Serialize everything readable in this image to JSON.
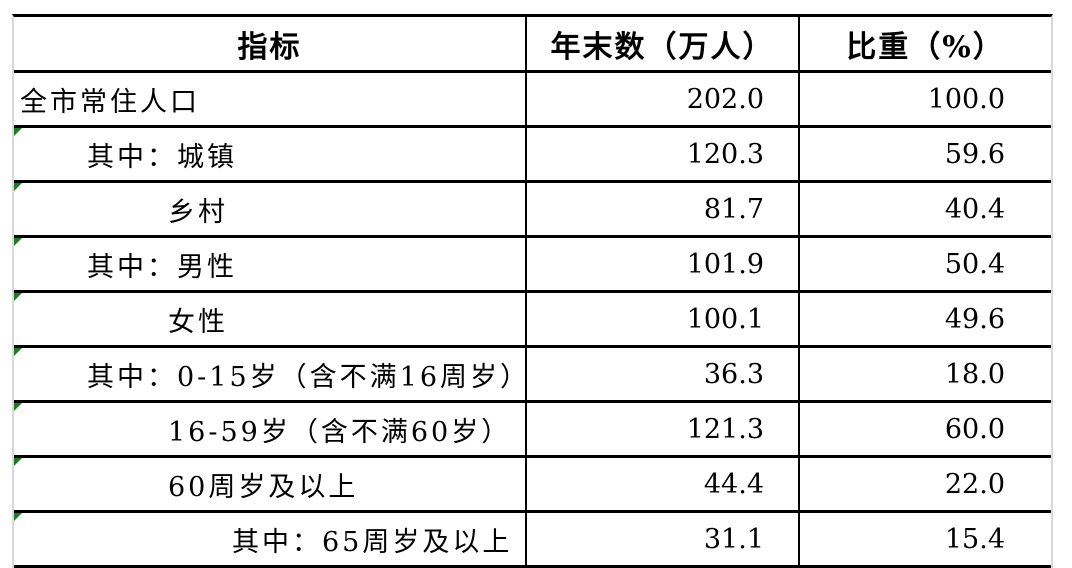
{
  "table": {
    "columns": [
      {
        "label": "指标"
      },
      {
        "label": "年末数（万人）"
      },
      {
        "label": "比重（%）"
      }
    ],
    "rows": [
      {
        "label": "全市常住人口",
        "indent": 0,
        "year_end": "202.0",
        "share": "100.0",
        "flag": false
      },
      {
        "label": "其中：城镇",
        "indent": 1,
        "year_end": "120.3",
        "share": "59.6",
        "flag": true
      },
      {
        "label": "乡村",
        "indent": 2,
        "year_end": "81.7",
        "share": "40.4",
        "flag": true
      },
      {
        "label": "其中：男性",
        "indent": 1,
        "year_end": "101.9",
        "share": "50.4",
        "flag": true
      },
      {
        "label": "女性",
        "indent": 2,
        "year_end": "100.1",
        "share": "49.6",
        "flag": true
      },
      {
        "label": "其中：0-15岁（含不满16周岁）",
        "indent": 1,
        "year_end": "36.3",
        "share": "18.0",
        "flag": true
      },
      {
        "label": "16-59岁（含不满60岁）",
        "indent": 2,
        "year_end": "121.3",
        "share": "60.0",
        "flag": true
      },
      {
        "label": "60周岁及以上",
        "indent": 2,
        "year_end": "44.4",
        "share": "22.0",
        "flag": true
      },
      {
        "label": "其中：65周岁及以上",
        "indent": 3,
        "year_end": "31.1",
        "share": "15.4",
        "flag": true
      }
    ]
  },
  "icons": {
    "flag": "error-indicator-triangle"
  },
  "colors": {
    "border_black": "#000000",
    "grid_gray": "#d9d9d9",
    "flag_green": "#1e7c1e",
    "background": "#ffffff"
  }
}
